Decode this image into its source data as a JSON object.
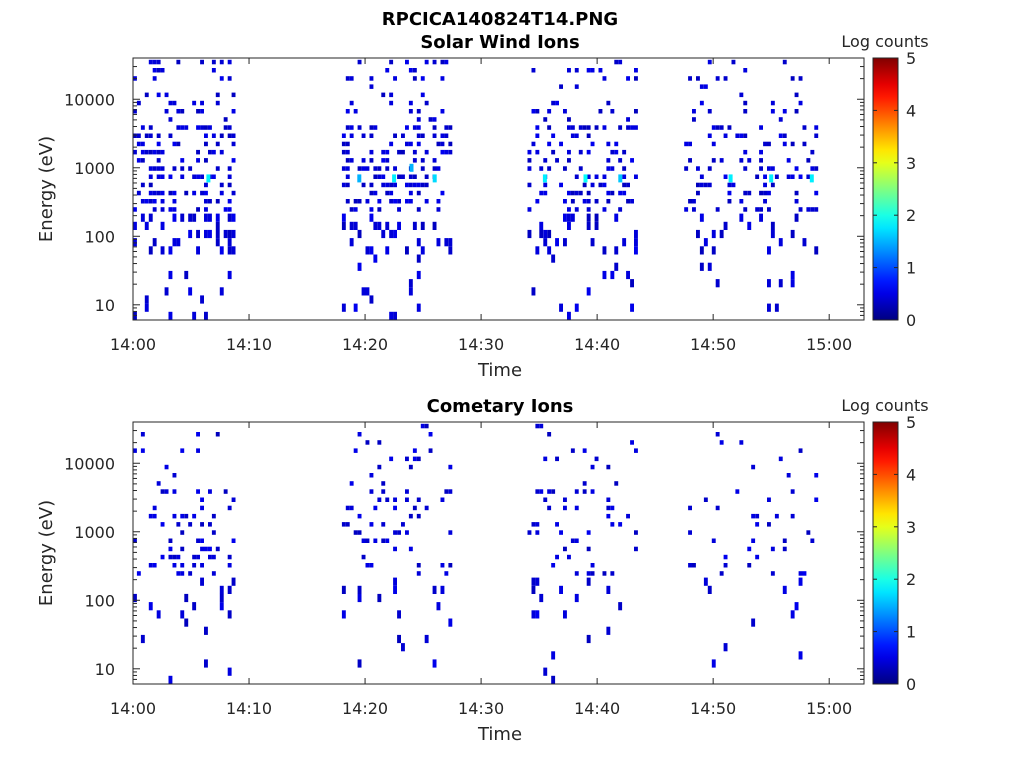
{
  "figure_title": "RPCICA140824T14.PNG",
  "chart_data": [
    {
      "type": "heatmap",
      "title": "Solar Wind Ions",
      "xlabel": "Time",
      "ylabel": "Energy (eV)",
      "x_ticks": [
        "14:00",
        "14:10",
        "14:20",
        "14:30",
        "14:40",
        "14:50",
        "15:00"
      ],
      "x_range": [
        "14:00",
        "15:03"
      ],
      "y_ticks": [
        "10",
        "100",
        "1000",
        "10000"
      ],
      "y_scale": "log",
      "y_range": [
        6,
        40000
      ],
      "colorbar": {
        "label": "Log counts",
        "ticks": [
          "0",
          "1",
          "2",
          "3",
          "4",
          "5"
        ],
        "range": [
          0,
          5
        ],
        "colormap": "jet"
      },
      "sampling_windows": [
        [
          "14:00",
          "14:08.5"
        ],
        [
          "14:18",
          "14:27.5"
        ],
        [
          "14:34",
          "14:43.5"
        ],
        [
          "14:47.5",
          "14:59"
        ]
      ],
      "density": [
        0.5,
        0.42,
        0.32,
        0.28
      ],
      "bright_spots": [
        {
          "time": "14:06.5",
          "energy": 700,
          "log_counts": 1.8
        },
        {
          "time": "14:19.5",
          "energy": 700,
          "log_counts": 1.5
        },
        {
          "time": "14:22.5",
          "energy": 700,
          "log_counts": 1.8
        },
        {
          "time": "14:24",
          "energy": 1000,
          "log_counts": 1.5
        },
        {
          "time": "14:26",
          "energy": 700,
          "log_counts": 1.7
        },
        {
          "time": "14:35.5",
          "energy": 700,
          "log_counts": 1.8
        },
        {
          "time": "14:39",
          "energy": 700,
          "log_counts": 1.9
        },
        {
          "time": "14:42",
          "energy": 700,
          "log_counts": 1.6
        },
        {
          "time": "14:51.5",
          "energy": 700,
          "log_counts": 1.8
        },
        {
          "time": "14:55",
          "energy": 700,
          "log_counts": 1.8
        },
        {
          "time": "14:58.5",
          "energy": 700,
          "log_counts": 1.8
        }
      ]
    },
    {
      "type": "heatmap",
      "title": "Cometary Ions",
      "xlabel": "Time",
      "ylabel": "Energy (eV)",
      "x_ticks": [
        "14:00",
        "14:10",
        "14:20",
        "14:30",
        "14:40",
        "14:50",
        "15:00"
      ],
      "x_range": [
        "14:00",
        "15:03"
      ],
      "y_ticks": [
        "10",
        "100",
        "1000",
        "10000"
      ],
      "y_scale": "log",
      "y_range": [
        6,
        40000
      ],
      "colorbar": {
        "label": "Log counts",
        "ticks": [
          "0",
          "1",
          "2",
          "3",
          "4",
          "5"
        ],
        "range": [
          0,
          5
        ],
        "colormap": "jet"
      },
      "sampling_windows": [
        [
          "14:00",
          "14:08.5"
        ],
        [
          "14:18",
          "14:27.5"
        ],
        [
          "14:34",
          "14:43.5"
        ],
        [
          "14:47.5",
          "14:59"
        ]
      ],
      "density": [
        0.26,
        0.2,
        0.14,
        0.1
      ],
      "bright_spots": []
    }
  ]
}
